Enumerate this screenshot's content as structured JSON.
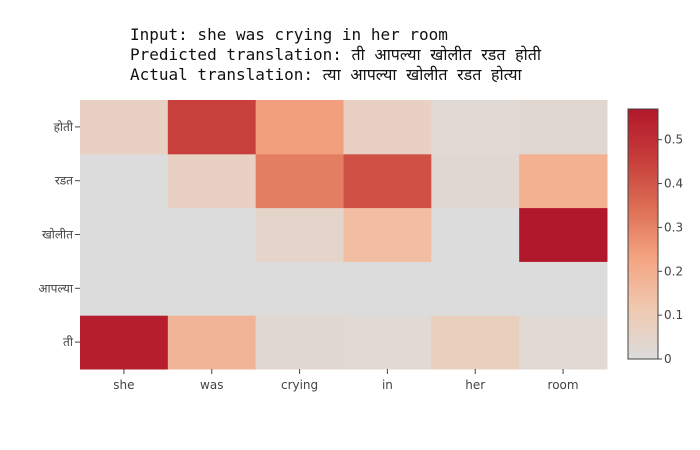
{
  "chart_data": {
    "type": "heatmap",
    "title_lines": [
      "Input: she was crying in her room",
      "Predicted translation: ती आपल्या खोलीत रडत होती",
      "Actual translation: त्या आपल्या खोलीत रडत होत्या"
    ],
    "x_categories": [
      "she",
      "was",
      "crying",
      "in",
      "her",
      "room"
    ],
    "y_categories": [
      "ती",
      "आपल्या",
      "खोलीत",
      "रडत",
      "होती"
    ],
    "z": [
      [
        0.55,
        0.18,
        0.03,
        0.02,
        0.08,
        0.02
      ],
      [
        0.0,
        0.0,
        0.0,
        0.0,
        0.0,
        0.0
      ],
      [
        0.0,
        0.0,
        0.05,
        0.15,
        0.0,
        0.57
      ],
      [
        0.0,
        0.07,
        0.31,
        0.41,
        0.03,
        0.19
      ],
      [
        0.07,
        0.45,
        0.24,
        0.07,
        0.02,
        0.03
      ]
    ],
    "zmin": 0,
    "zmax": 0.57,
    "colorscale": [
      [
        0.0,
        "#dcdcdc"
      ],
      [
        0.2,
        "#f0c9b1"
      ],
      [
        0.4,
        "#f4a582"
      ],
      [
        0.6,
        "#dd6f55"
      ],
      [
        0.8,
        "#c63d3a"
      ],
      [
        1.0,
        "#b2182b"
      ]
    ],
    "colorbar_ticks": [
      0,
      0.1,
      0.2,
      0.3,
      0.4,
      0.5
    ],
    "colorbar_tick_labels": [
      "0",
      "0.1",
      "0.2",
      "0.3",
      "0.4",
      "0.5"
    ]
  }
}
